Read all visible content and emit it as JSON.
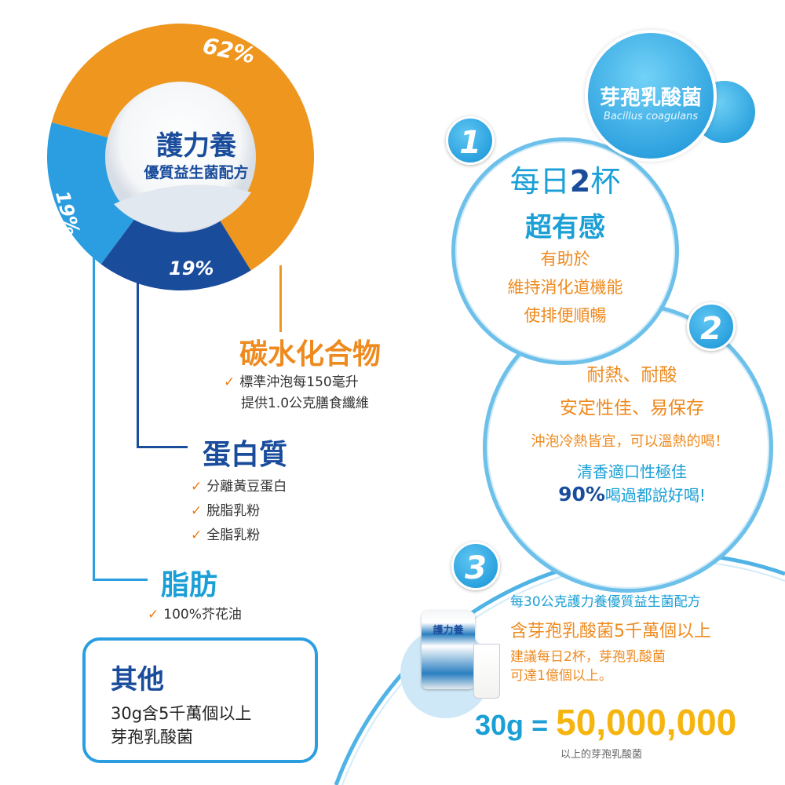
{
  "donut": {
    "center_title": "護力養",
    "center_subtitle": "優質益生菌配方",
    "slices": [
      {
        "name": "碳水化合物",
        "value": 62,
        "label": "62%",
        "color": "#ee961e"
      },
      {
        "name": "蛋白質",
        "value": 19,
        "label": "19%",
        "color": "#1a4c9c"
      },
      {
        "name": "脂肪",
        "value": 19,
        "label": "19%",
        "color": "#2a9ee0"
      }
    ]
  },
  "carbs": {
    "title": "碳水化合物",
    "items": [
      "標準沖泡每150毫升",
      "提供1.0公克膳食纖維"
    ]
  },
  "protein": {
    "title": "蛋白質",
    "items": [
      "分離黃豆蛋白",
      "脫脂乳粉",
      "全脂乳粉"
    ]
  },
  "fat": {
    "title": "脂肪",
    "items": [
      "100%芥花油"
    ]
  },
  "other": {
    "title": "其他",
    "lines": [
      "30g含5千萬個以上",
      "芽孢乳酸菌"
    ]
  },
  "check_icon": "✓",
  "badge": {
    "title": "芽孢乳酸菌",
    "subtitle": "Bacillus coagulans"
  },
  "point1": {
    "number": "1",
    "line1_a": "每日",
    "line1_b": "2",
    "line1_c": "杯",
    "line2": "超有感",
    "lines": [
      "有助於",
      "維持消化道機能",
      "使排便順暢"
    ]
  },
  "point2": {
    "number": "2",
    "line1": "耐熱、耐酸",
    "line2": "安定性佳、易保存",
    "line3": "沖泡冷熱皆宜，可以溫熱的喝！",
    "line4": "清香適口性極佳",
    "pct": "90%",
    "line5": "喝過都說好喝!"
  },
  "point3": {
    "number": "3",
    "line1": "每30公克護力養優質益生菌配方",
    "line2": "含芽孢乳酸菌5千萬個以上",
    "line3": "建議每日2杯，芽孢乳酸菌",
    "line4": "可達1億個以上。",
    "big_left": "30g",
    "equals": "=",
    "big_value": "50,000,000",
    "caption": "以上的芽孢乳酸菌"
  },
  "product": {
    "name": "護力養"
  }
}
